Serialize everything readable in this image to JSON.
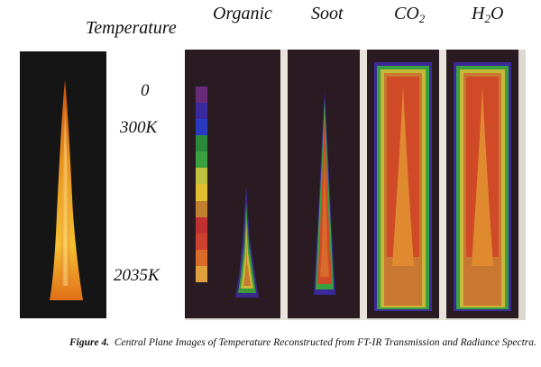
{
  "headers": {
    "temperature": "Temperature",
    "organic": "Organic",
    "soot": "Soot",
    "co2": "CO",
    "co2_sub": "2",
    "h2o_h": "H",
    "h2o_sub": "2",
    "h2o_o": "O"
  },
  "temperature_labels": {
    "zero": "0",
    "low": "300K",
    "high": "2035K"
  },
  "colorbar_colors": [
    "#6a2a7a",
    "#3a2aa0",
    "#2a3ac0",
    "#2a8a3a",
    "#3aa040",
    "#c0c040",
    "#e0c030",
    "#c08030",
    "#c03030",
    "#d04030",
    "#d86a2a",
    "#e0a040"
  ],
  "caption": {
    "figure_label": "Figure 4.",
    "text": "Central Plane Images of Temperature Reconstructed from FT-IR Transmission and Radiance Spectra."
  }
}
